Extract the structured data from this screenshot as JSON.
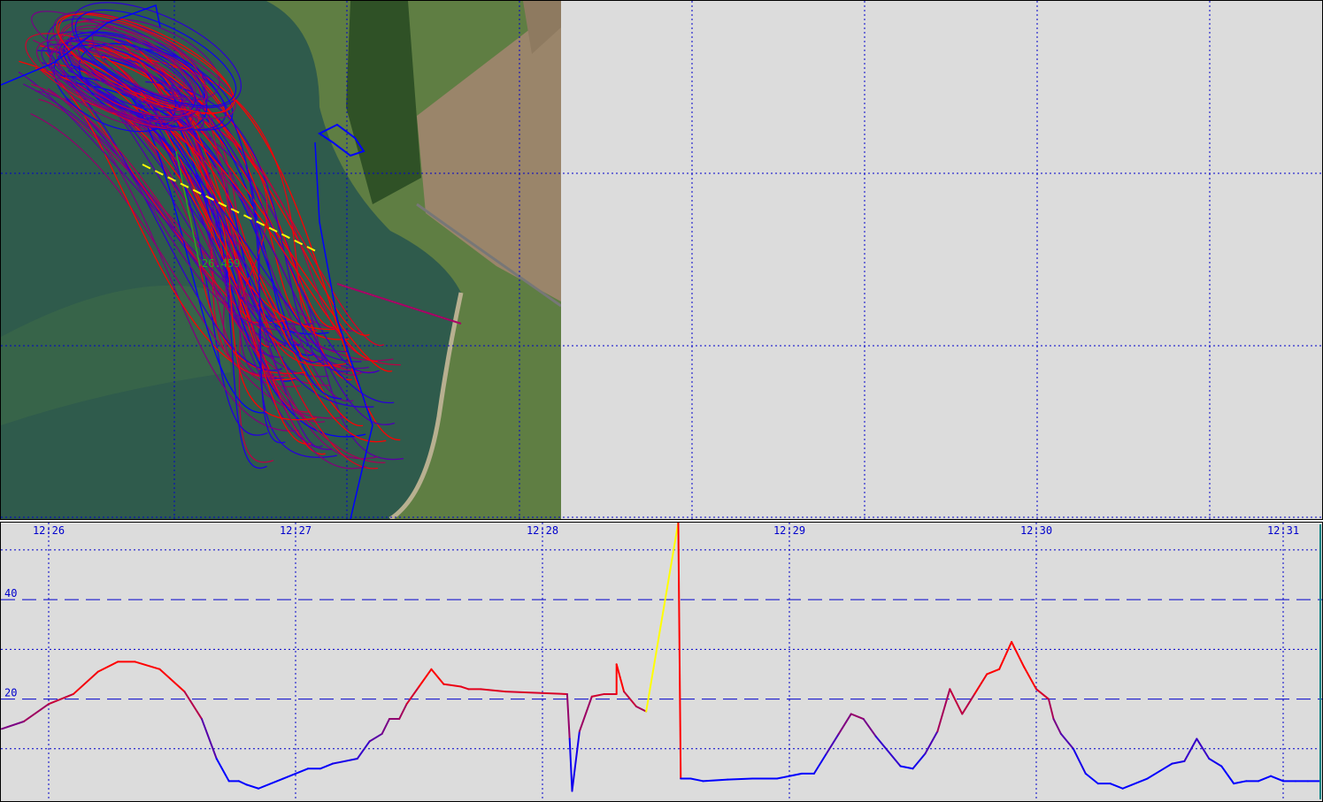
{
  "map": {
    "distance_label": "26.459",
    "colors": {
      "water": "#2c5a4a",
      "land": "#5f7e43",
      "field": "#a08a6a",
      "track_low": "#0000ff",
      "track_high": "#ff0000",
      "grid": "#0000cc",
      "segment": "#ffff00"
    }
  },
  "chart_data": {
    "type": "line",
    "title": "",
    "xlabel": "",
    "ylabel": "",
    "x_tick_labels": [
      "12:26",
      "12:27",
      "12:28",
      "12:29",
      "12:30",
      "12:31"
    ],
    "x_tick_minutes": [
      0,
      1,
      2,
      3,
      4,
      5
    ],
    "y_tick_labels": [
      "20",
      "40"
    ],
    "y_ticks": [
      20,
      40
    ],
    "ylim": [
      0,
      55.5
    ],
    "xlim_minutes": [
      -0.19,
      5.15
    ],
    "grid": true,
    "series": [
      {
        "x_minutes": [
          -0.19,
          -0.1,
          0,
          0.1,
          0.2,
          0.28,
          0.35,
          0.45,
          0.55,
          0.62,
          0.68,
          0.73,
          0.77,
          0.8,
          0.85,
          0.95,
          1.0,
          1.05,
          1.1,
          1.15,
          1.25,
          1.3,
          1.35,
          1.38,
          1.42,
          1.45,
          1.5,
          1.55,
          1.6,
          1.67,
          1.7,
          1.75,
          1.85,
          2.1,
          2.11,
          2.12,
          2.15,
          2.2,
          2.25,
          2.3,
          2.3,
          2.33,
          2.38,
          2.42
        ],
        "values": [
          14,
          15.5,
          19,
          21,
          25.5,
          27.5,
          27.5,
          26,
          21.5,
          16,
          8,
          3.5,
          3.5,
          2.8,
          2,
          4,
          5,
          6,
          6,
          7,
          8,
          11.5,
          13,
          16,
          16,
          19,
          22.5,
          26,
          23,
          22.5,
          22,
          22,
          21.5,
          21,
          12,
          1.5,
          13.5,
          20.5,
          21,
          21,
          27,
          21.5,
          18.5,
          17.5
        ]
      },
      {
        "x_minutes": [
          2.42,
          2.55
        ],
        "values": [
          17.5,
          55.5
        ]
      },
      {
        "x_minutes": [
          2.55,
          2.56,
          2.6,
          2.65,
          2.75,
          2.85,
          2.95,
          3.05,
          3.1,
          3.15,
          3.2,
          3.25,
          3.3,
          3.35,
          3.45,
          3.5,
          3.55,
          3.6,
          3.65,
          3.7,
          3.75,
          3.8,
          3.85,
          3.9,
          3.95,
          4.0,
          4.05,
          4.07,
          4.1,
          4.15,
          4.2,
          4.25,
          4.3,
          4.35,
          4.45,
          4.5,
          4.55,
          4.6,
          4.65,
          4.7,
          4.75,
          4.8,
          4.85,
          4.9,
          4.95,
          5.0,
          5.05,
          5.1,
          5.15
        ],
        "values": [
          55.5,
          4,
          4,
          3.5,
          3.8,
          4,
          4,
          5,
          5,
          9,
          13,
          17,
          16,
          12.5,
          6.5,
          6,
          9,
          13.5,
          22,
          17,
          21,
          25,
          26,
          31.5,
          26.5,
          22,
          20,
          16,
          13,
          10,
          5,
          3,
          3,
          2,
          4,
          5.5,
          7,
          7.5,
          12,
          8,
          6.5,
          3,
          3.5,
          3.5,
          4.5,
          3.5,
          3.5,
          3.5,
          3.5
        ]
      }
    ]
  }
}
